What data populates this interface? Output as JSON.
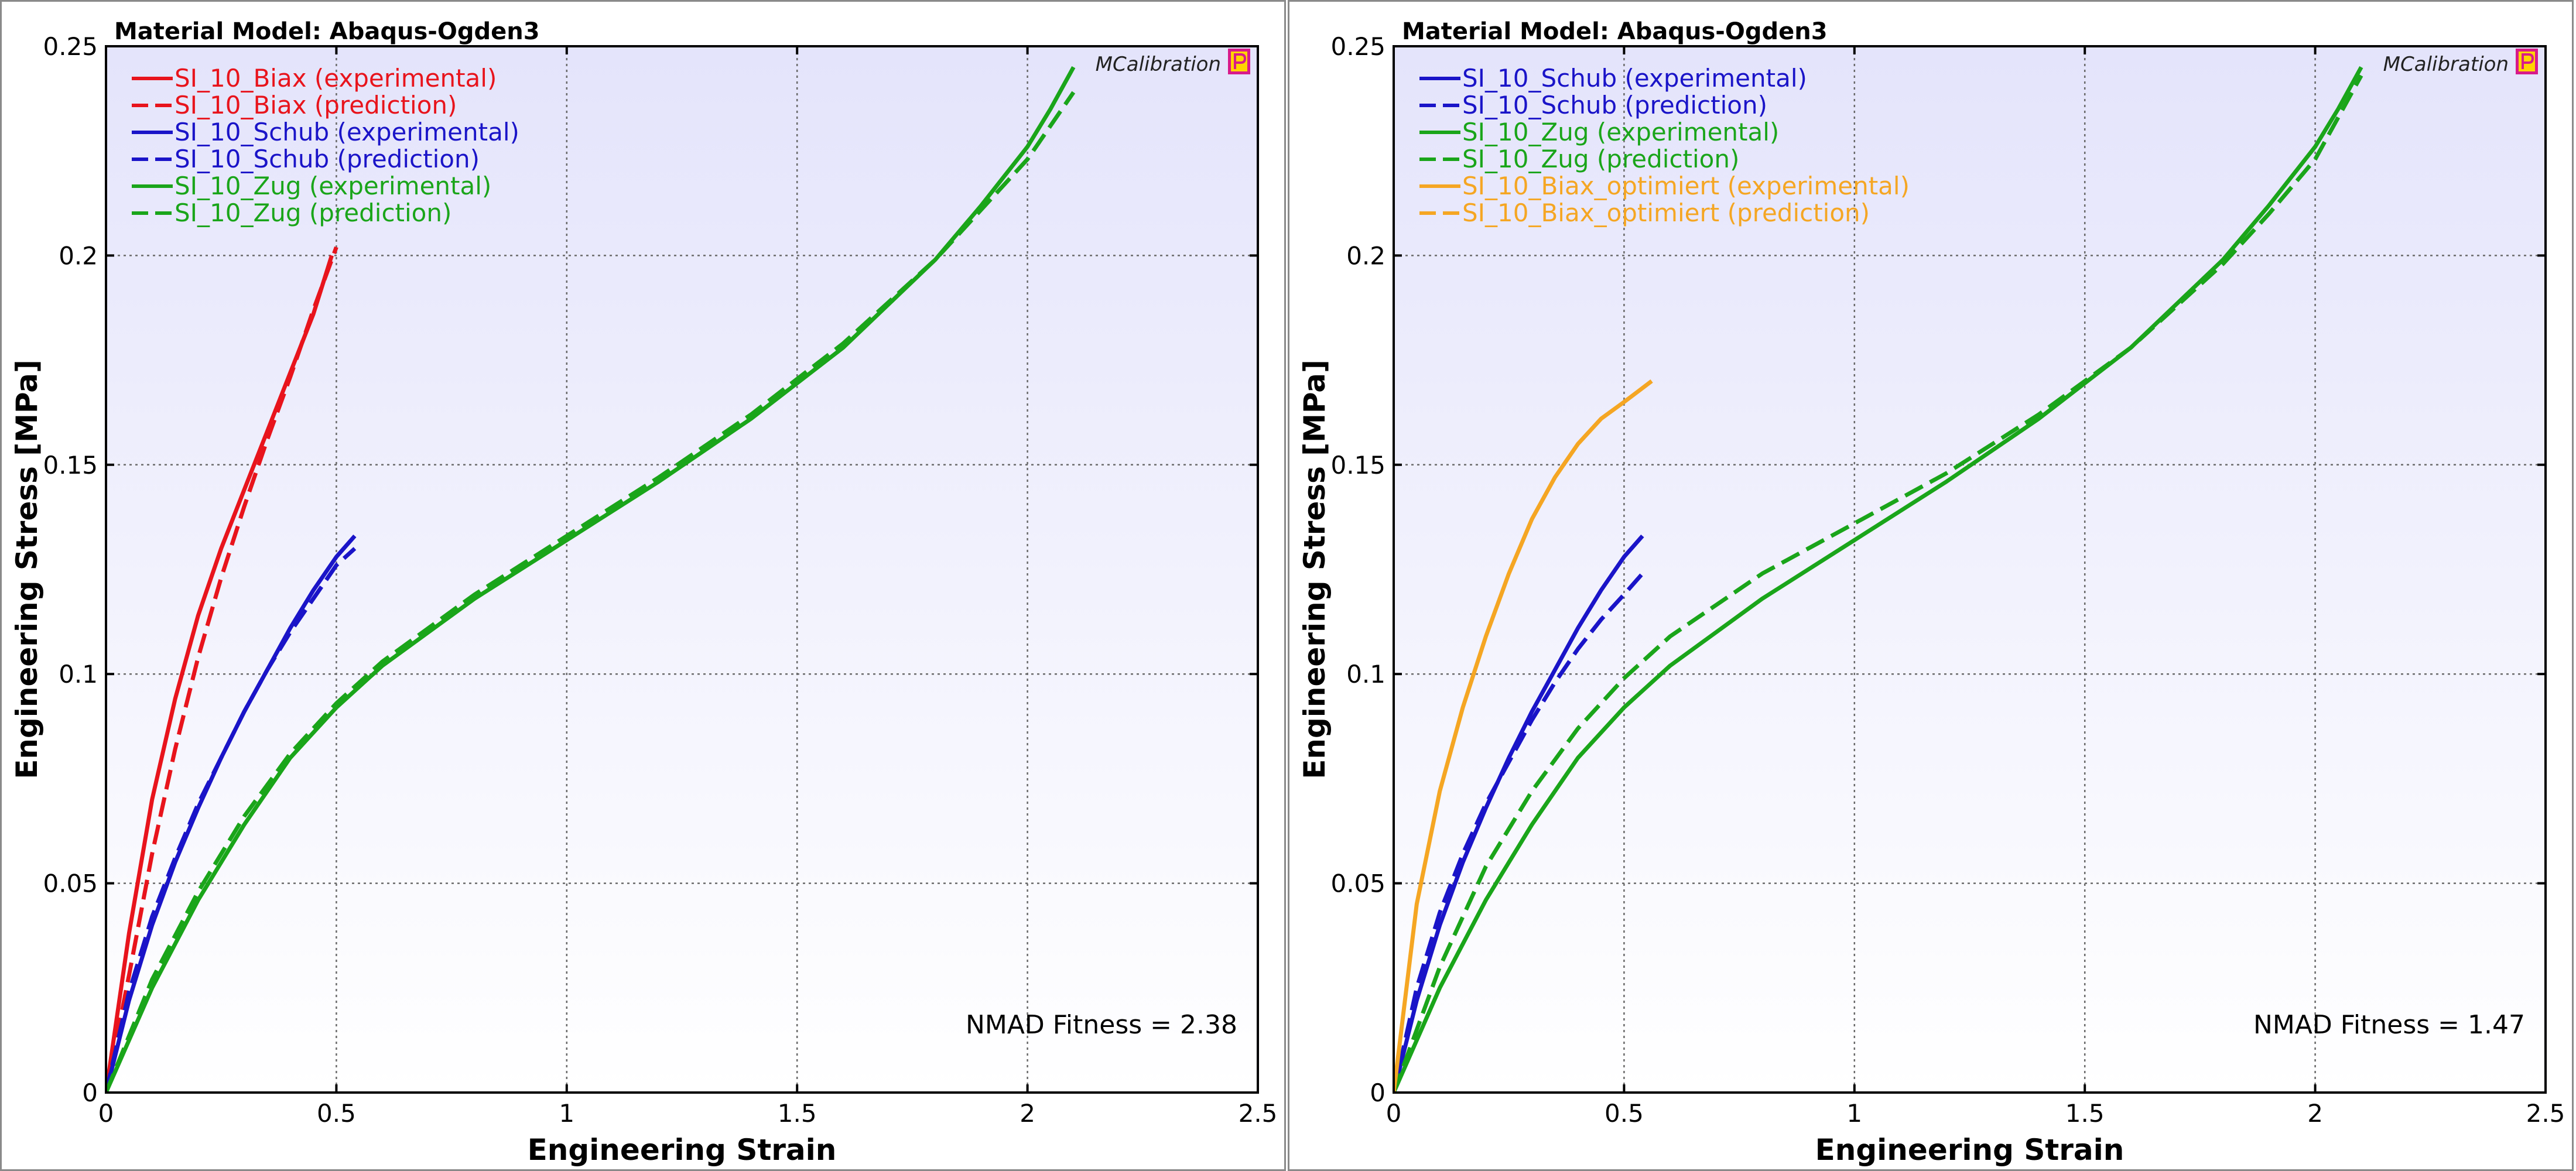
{
  "chart_data": [
    {
      "type": "line",
      "title": "Material Model: Abaqus-Ogden3",
      "xlabel": "Engineering Strain",
      "ylabel": "Engineering Stress [MPa]",
      "xlim": [
        0,
        2.5
      ],
      "ylim": [
        0,
        0.25
      ],
      "xticks": [
        0,
        0.5,
        1,
        1.5,
        2,
        2.5
      ],
      "xtick_labels": [
        "0",
        "0.5",
        "1",
        "1.5",
        "2",
        "2.5"
      ],
      "yticks": [
        0,
        0.05,
        0.1,
        0.15,
        0.2,
        0.25
      ],
      "ytick_labels": [
        "0",
        "0.05",
        "0.1",
        "0.15",
        "0.2",
        "0.25"
      ],
      "grid": true,
      "legend_position": "top-left",
      "annotation": "NMAD Fitness = 2.38",
      "brand": "MCalibration",
      "series": [
        {
          "name": "SI_10_Biax (experimental)",
          "color": "#e8141c",
          "dash": "solid",
          "x": [
            0,
            0.05,
            0.1,
            0.15,
            0.2,
            0.25,
            0.3,
            0.35,
            0.4,
            0.45,
            0.49
          ],
          "y": [
            0,
            0.038,
            0.07,
            0.094,
            0.114,
            0.13,
            0.144,
            0.158,
            0.172,
            0.186,
            0.2
          ]
        },
        {
          "name": "SI_10_Biax (prediction)",
          "color": "#e8141c",
          "dash": "dash",
          "x": [
            0,
            0.05,
            0.1,
            0.15,
            0.2,
            0.25,
            0.3,
            0.35,
            0.4,
            0.45,
            0.5
          ],
          "y": [
            0,
            0.028,
            0.057,
            0.082,
            0.104,
            0.123,
            0.14,
            0.156,
            0.171,
            0.187,
            0.202
          ]
        },
        {
          "name": "SI_10_Schub (experimental)",
          "color": "#1a14c8",
          "dash": "solid",
          "x": [
            0,
            0.05,
            0.1,
            0.15,
            0.2,
            0.25,
            0.3,
            0.35,
            0.4,
            0.45,
            0.5,
            0.54
          ],
          "y": [
            0,
            0.022,
            0.04,
            0.055,
            0.068,
            0.08,
            0.091,
            0.101,
            0.111,
            0.12,
            0.128,
            0.133
          ]
        },
        {
          "name": "SI_10_Schub (prediction)",
          "color": "#1a14c8",
          "dash": "dash",
          "x": [
            0,
            0.05,
            0.1,
            0.15,
            0.2,
            0.25,
            0.3,
            0.35,
            0.4,
            0.45,
            0.5,
            0.54
          ],
          "y": [
            0,
            0.024,
            0.042,
            0.056,
            0.069,
            0.08,
            0.091,
            0.101,
            0.11,
            0.118,
            0.126,
            0.13
          ]
        },
        {
          "name": "SI_10_Zug (experimental)",
          "color": "#1aa51a",
          "dash": "solid",
          "x": [
            0,
            0.1,
            0.2,
            0.3,
            0.4,
            0.5,
            0.6,
            0.8,
            1.0,
            1.2,
            1.4,
            1.6,
            1.8,
            1.9,
            2.0,
            2.05,
            2.1
          ],
          "y": [
            0,
            0.025,
            0.046,
            0.064,
            0.08,
            0.092,
            0.102,
            0.118,
            0.132,
            0.146,
            0.161,
            0.178,
            0.199,
            0.212,
            0.226,
            0.235,
            0.245
          ]
        },
        {
          "name": "SI_10_Zug (prediction)",
          "color": "#1aa51a",
          "dash": "dash",
          "x": [
            0,
            0.1,
            0.2,
            0.3,
            0.4,
            0.5,
            0.6,
            0.8,
            1.0,
            1.2,
            1.4,
            1.6,
            1.8,
            1.9,
            2.0,
            2.1
          ],
          "y": [
            0,
            0.027,
            0.048,
            0.066,
            0.081,
            0.093,
            0.103,
            0.119,
            0.133,
            0.147,
            0.162,
            0.179,
            0.199,
            0.211,
            0.223,
            0.239
          ]
        }
      ]
    },
    {
      "type": "line",
      "title": "Material Model: Abaqus-Ogden3",
      "xlabel": "Engineering Strain",
      "ylabel": "Engineering Stress [MPa]",
      "xlim": [
        0,
        2.5
      ],
      "ylim": [
        0,
        0.25
      ],
      "xticks": [
        0,
        0.5,
        1,
        1.5,
        2,
        2.5
      ],
      "xtick_labels": [
        "0",
        "0.5",
        "1",
        "1.5",
        "2",
        "2.5"
      ],
      "yticks": [
        0,
        0.05,
        0.1,
        0.15,
        0.2,
        0.25
      ],
      "ytick_labels": [
        "0",
        "0.05",
        "0.1",
        "0.15",
        "0.2",
        "0.25"
      ],
      "grid": true,
      "legend_position": "top-left",
      "annotation": "NMAD Fitness = 1.47",
      "brand": "MCalibration",
      "series": [
        {
          "name": "SI_10_Schub (experimental)",
          "color": "#1a14c8",
          "dash": "solid",
          "x": [
            0,
            0.05,
            0.1,
            0.15,
            0.2,
            0.25,
            0.3,
            0.35,
            0.4,
            0.45,
            0.5,
            0.54
          ],
          "y": [
            0,
            0.022,
            0.04,
            0.055,
            0.068,
            0.08,
            0.091,
            0.101,
            0.111,
            0.12,
            0.128,
            0.133
          ]
        },
        {
          "name": "SI_10_Schub (prediction)",
          "color": "#1a14c8",
          "dash": "dash",
          "x": [
            0,
            0.05,
            0.1,
            0.15,
            0.2,
            0.25,
            0.3,
            0.35,
            0.4,
            0.45,
            0.5,
            0.54
          ],
          "y": [
            0,
            0.025,
            0.043,
            0.057,
            0.069,
            0.079,
            0.089,
            0.098,
            0.106,
            0.113,
            0.119,
            0.124
          ]
        },
        {
          "name": "SI_10_Zug (experimental)",
          "color": "#1aa51a",
          "dash": "solid",
          "x": [
            0,
            0.1,
            0.2,
            0.3,
            0.4,
            0.5,
            0.6,
            0.8,
            1.0,
            1.2,
            1.4,
            1.6,
            1.8,
            1.9,
            2.0,
            2.05,
            2.1
          ],
          "y": [
            0,
            0.025,
            0.046,
            0.064,
            0.08,
            0.092,
            0.102,
            0.118,
            0.132,
            0.146,
            0.161,
            0.178,
            0.199,
            0.212,
            0.226,
            0.235,
            0.245
          ]
        },
        {
          "name": "SI_10_Zug (prediction)",
          "color": "#1aa51a",
          "dash": "dash",
          "x": [
            0,
            0.1,
            0.2,
            0.3,
            0.4,
            0.5,
            0.6,
            0.8,
            1.0,
            1.2,
            1.4,
            1.6,
            1.8,
            1.9,
            2.0,
            2.1
          ],
          "y": [
            0,
            0.03,
            0.054,
            0.072,
            0.087,
            0.099,
            0.109,
            0.124,
            0.136,
            0.148,
            0.162,
            0.178,
            0.198,
            0.21,
            0.223,
            0.243
          ]
        },
        {
          "name": "SI_10_Biax_optimiert (experimental)",
          "color": "#f5a623",
          "dash": "solid",
          "x": [
            0,
            0.05,
            0.1,
            0.15,
            0.2,
            0.25,
            0.3,
            0.35,
            0.4,
            0.45,
            0.5,
            0.56
          ],
          "y": [
            0,
            0.045,
            0.072,
            0.092,
            0.109,
            0.124,
            0.137,
            0.147,
            0.155,
            0.161,
            0.165,
            0.17
          ]
        },
        {
          "name": "SI_10_Biax_optimiert (prediction)",
          "color": "#f5a623",
          "dash": "dash",
          "x": [],
          "y": []
        }
      ]
    }
  ]
}
